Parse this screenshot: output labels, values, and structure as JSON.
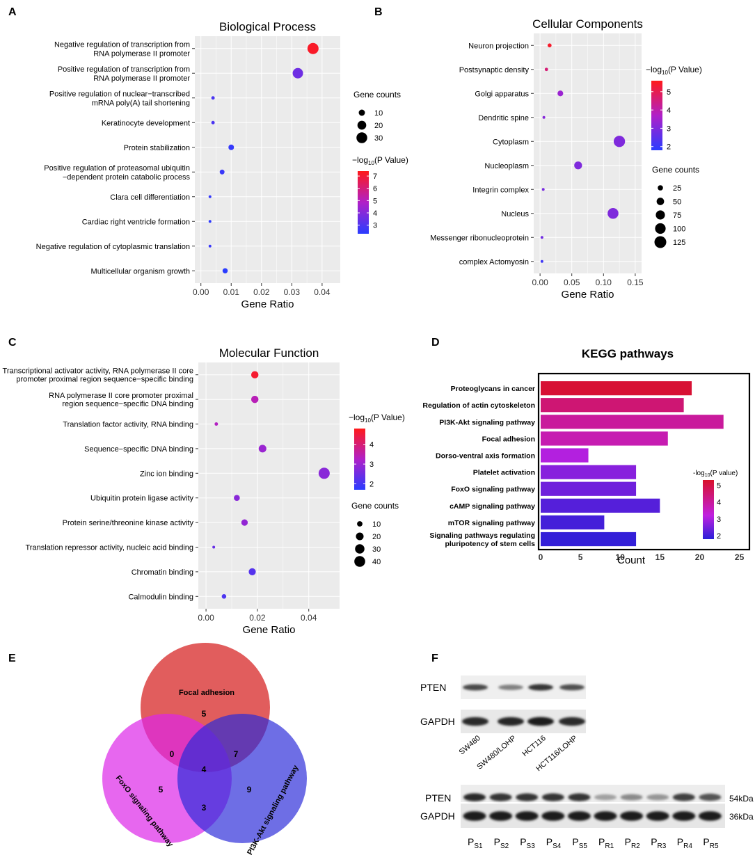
{
  "panels": {
    "a": "A",
    "b": "B",
    "c": "C",
    "d": "D",
    "e": "E",
    "f": "F"
  },
  "colors": {
    "high": "#ff1a1a",
    "mid": "#b020c8",
    "low": "#2a3cff",
    "grid_bg": "#ebebeb"
  },
  "chart_data": [
    {
      "id": "bp",
      "type": "scatter",
      "title": "Biological Process",
      "xlabel": "Gene Ratio",
      "xlim": [
        -0.002,
        0.046
      ],
      "xticks": [
        0.0,
        0.01,
        0.02,
        0.03,
        0.04
      ],
      "xtick_labels": [
        "0.00",
        "0.01",
        "0.02",
        "0.03",
        "0.04"
      ],
      "terms": [
        [
          "Negative regulation of transcription from",
          "RNA polymerase II promoter"
        ],
        [
          "Positive regulation of transcription from",
          "RNA polymerase II promoter"
        ],
        [
          "Positive regulation of nuclear−transcribed",
          "mRNA poly(A) tail shortening"
        ],
        [
          "Keratinocyte development"
        ],
        [
          "Protein stabilization"
        ],
        [
          "Positive regulation of proteasomal ubiquitin",
          "−dependent protein catabolic process"
        ],
        [
          "Clara cell differentiation"
        ],
        [
          "Cardiac right ventricle formation"
        ],
        [
          "Negative regulation of cytoplasmic translation"
        ],
        [
          "Multicellular organism growth"
        ]
      ],
      "gene_ratio": [
        0.037,
        0.032,
        0.004,
        0.004,
        0.01,
        0.007,
        0.003,
        0.003,
        0.003,
        0.008
      ],
      "gene_counts": [
        32,
        28,
        3,
        3,
        8,
        6,
        2,
        2,
        2,
        7
      ],
      "neg_log10_p": [
        7.2,
        3.6,
        2.9,
        2.9,
        2.5,
        2.6,
        2.5,
        2.4,
        2.6,
        2.3
      ],
      "size_legend": {
        "title": "Gene counts",
        "values": [
          10,
          20,
          30
        ],
        "labels": [
          "10",
          "20",
          "30"
        ]
      },
      "color_legend": {
        "title_prefix": "−log",
        "title_sub": "10",
        "title_suffix": "(P Value)",
        "range": [
          2.3,
          7.4
        ],
        "ticks": [
          3,
          4,
          5,
          6,
          7
        ],
        "tick_labels": [
          "3",
          "4",
          "5",
          "6",
          "7"
        ]
      }
    },
    {
      "id": "cc",
      "type": "scatter",
      "title": "Cellular Components",
      "xlabel": "Gene Ratio",
      "xlim": [
        -0.01,
        0.16
      ],
      "xticks": [
        0.0,
        0.05,
        0.1,
        0.15
      ],
      "xtick_labels": [
        "0.00",
        "0.05",
        "0.10",
        "0.15"
      ],
      "terms": [
        [
          "Neuron projection"
        ],
        [
          "Postsynaptic density"
        ],
        [
          "Golgi apparatus"
        ],
        [
          "Dendritic spine"
        ],
        [
          "Cytoplasm"
        ],
        [
          "Nucleoplasm"
        ],
        [
          "Integrin complex"
        ],
        [
          "Nucleus"
        ],
        [
          "Messenger ribonucleoprotein"
        ],
        [
          "complex Actomyosin"
        ]
      ],
      "gene_ratio": [
        0.015,
        0.01,
        0.032,
        0.006,
        0.125,
        0.06,
        0.005,
        0.115,
        0.003,
        0.003
      ],
      "gene_counts": [
        14,
        10,
        29,
        6,
        115,
        55,
        5,
        105,
        3,
        3
      ],
      "neg_log10_p": [
        5.4,
        4.6,
        3.4,
        3.1,
        3.0,
        3.0,
        2.9,
        3.0,
        2.8,
        2.1
      ],
      "size_legend": {
        "title": "Gene counts",
        "values": [
          25,
          50,
          75,
          100,
          125
        ],
        "labels": [
          "25",
          "50",
          "75",
          "100",
          "125"
        ]
      },
      "color_legend": {
        "title_prefix": "−log",
        "title_sub": "10",
        "title_suffix": "(P Value)",
        "range": [
          1.8,
          5.6
        ],
        "ticks": [
          2,
          3,
          4,
          5
        ],
        "tick_labels": [
          "2",
          "3",
          "4",
          "5"
        ]
      }
    },
    {
      "id": "mf",
      "type": "scatter",
      "title": "Molecular Function",
      "xlabel": "Gene Ratio",
      "xlim": [
        -0.003,
        0.052
      ],
      "xticks": [
        0.0,
        0.02,
        0.04
      ],
      "xtick_labels": [
        "0.00",
        "0.02",
        "0.04"
      ],
      "terms": [
        [
          "Transcriptional activator activity, RNA polymerase II core",
          "promoter proximal region sequence−specific binding"
        ],
        [
          "RNA polymerase II core promoter proximal",
          "region sequence−specific DNA binding"
        ],
        [
          "Translation factor activity, RNA binding"
        ],
        [
          "Sequence−specific DNA binding"
        ],
        [
          "Zinc ion binding"
        ],
        [
          "Ubiquitin protein ligase activity"
        ],
        [
          "Protein serine/threonine kinase activity"
        ],
        [
          "Translation repressor activity, nucleic acid binding"
        ],
        [
          "Chromatin binding"
        ],
        [
          "Calmodulin binding"
        ]
      ],
      "gene_ratio": [
        0.019,
        0.019,
        0.004,
        0.022,
        0.046,
        0.012,
        0.015,
        0.003,
        0.018,
        0.007
      ],
      "gene_counts": [
        18,
        18,
        4,
        20,
        42,
        12,
        14,
        2,
        17,
        7
      ],
      "neg_log10_p": [
        4.6,
        3.4,
        3.3,
        3.0,
        2.8,
        2.8,
        2.9,
        2.4,
        2.2,
        2.1
      ],
      "size_legend": {
        "title": "Gene counts",
        "values": [
          10,
          20,
          30,
          40
        ],
        "labels": [
          "10",
          "20",
          "30",
          "40"
        ]
      },
      "color_legend": {
        "title_prefix": "−log",
        "title_sub": "10",
        "title_suffix": "(P Value)",
        "range": [
          1.7,
          4.8
        ],
        "ticks": [
          2,
          3,
          4
        ],
        "tick_labels": [
          "2",
          "3",
          "4"
        ]
      }
    },
    {
      "id": "kegg",
      "type": "bar",
      "orientation": "horizontal",
      "title": "KEGG pathways",
      "xlabel": "Count",
      "xlim": [
        0,
        26
      ],
      "xticks": [
        0,
        5,
        10,
        15,
        20,
        25
      ],
      "xtick_labels": [
        "0",
        "5",
        "10",
        "15",
        "20",
        "25"
      ],
      "categories": [
        [
          "Proteoglycans in cancer"
        ],
        [
          "Regulation of actin cytoskeleton"
        ],
        [
          "PI3K-Akt signaling pathway"
        ],
        [
          "Focal adhesion"
        ],
        [
          "Dorso-ventral axis formation"
        ],
        [
          "Platelet activation"
        ],
        [
          "FoxO signaling pathway"
        ],
        [
          "cAMP signaling pathway"
        ],
        [
          "mTOR signaling pathway"
        ],
        [
          "Signaling pathways regulating",
          "pluripotency of stem cells"
        ]
      ],
      "values": [
        19,
        18,
        23,
        16,
        6,
        12,
        12,
        15,
        8,
        12
      ],
      "neg_log10_p": [
        5.2,
        4.6,
        4.2,
        4.0,
        3.4,
        2.9,
        2.6,
        2.3,
        2.1,
        1.9
      ],
      "color_legend": {
        "title_prefix": "-log",
        "title_sub": "10",
        "title_suffix": "(P value)",
        "range": [
          1.8,
          5.3
        ],
        "ticks": [
          2,
          3,
          4,
          5
        ],
        "tick_labels": [
          "2",
          "3",
          "4",
          "5"
        ]
      }
    }
  ],
  "venn": {
    "sets": [
      "Focal adhesion",
      "FoxO signaling pathway",
      "PI3K-Akt signaling pathway"
    ],
    "regions": {
      "focal_only": "5",
      "foxo_only": "5",
      "pi3k_only": "9",
      "focal_foxo": "0",
      "focal_pi3k": "7",
      "foxo_pi3k": "3",
      "all": "4"
    }
  },
  "western_blot": {
    "top": {
      "rows": [
        "PTEN",
        "GAPDH"
      ],
      "lanes": [
        "SW480",
        "SW480/LOHP",
        "HCT116",
        "HCT116/LOHP"
      ],
      "pten_intensity": [
        0.75,
        0.5,
        0.85,
        0.72
      ],
      "gapdh_intensity": [
        0.9,
        0.92,
        0.95,
        0.9
      ]
    },
    "bottom": {
      "rows": [
        "PTEN",
        "GAPDH"
      ],
      "sizes": [
        "54kDa",
        "36kDa"
      ],
      "lanes": [
        {
          "p": "P",
          "sub": "S1"
        },
        {
          "p": "P",
          "sub": "S2"
        },
        {
          "p": "P",
          "sub": "S3"
        },
        {
          "p": "P",
          "sub": "S4"
        },
        {
          "p": "P",
          "sub": "S5"
        },
        {
          "p": "P",
          "sub": "R1"
        },
        {
          "p": "P",
          "sub": "R2"
        },
        {
          "p": "P",
          "sub": "R3"
        },
        {
          "p": "P",
          "sub": "R4"
        },
        {
          "p": "P",
          "sub": "R5"
        }
      ],
      "pten_intensity": [
        0.9,
        0.85,
        0.85,
        0.85,
        0.85,
        0.35,
        0.45,
        0.4,
        0.8,
        0.7
      ],
      "gapdh_intensity": [
        0.95,
        0.95,
        0.95,
        0.95,
        0.95,
        0.95,
        0.95,
        0.95,
        0.95,
        0.95
      ]
    }
  }
}
